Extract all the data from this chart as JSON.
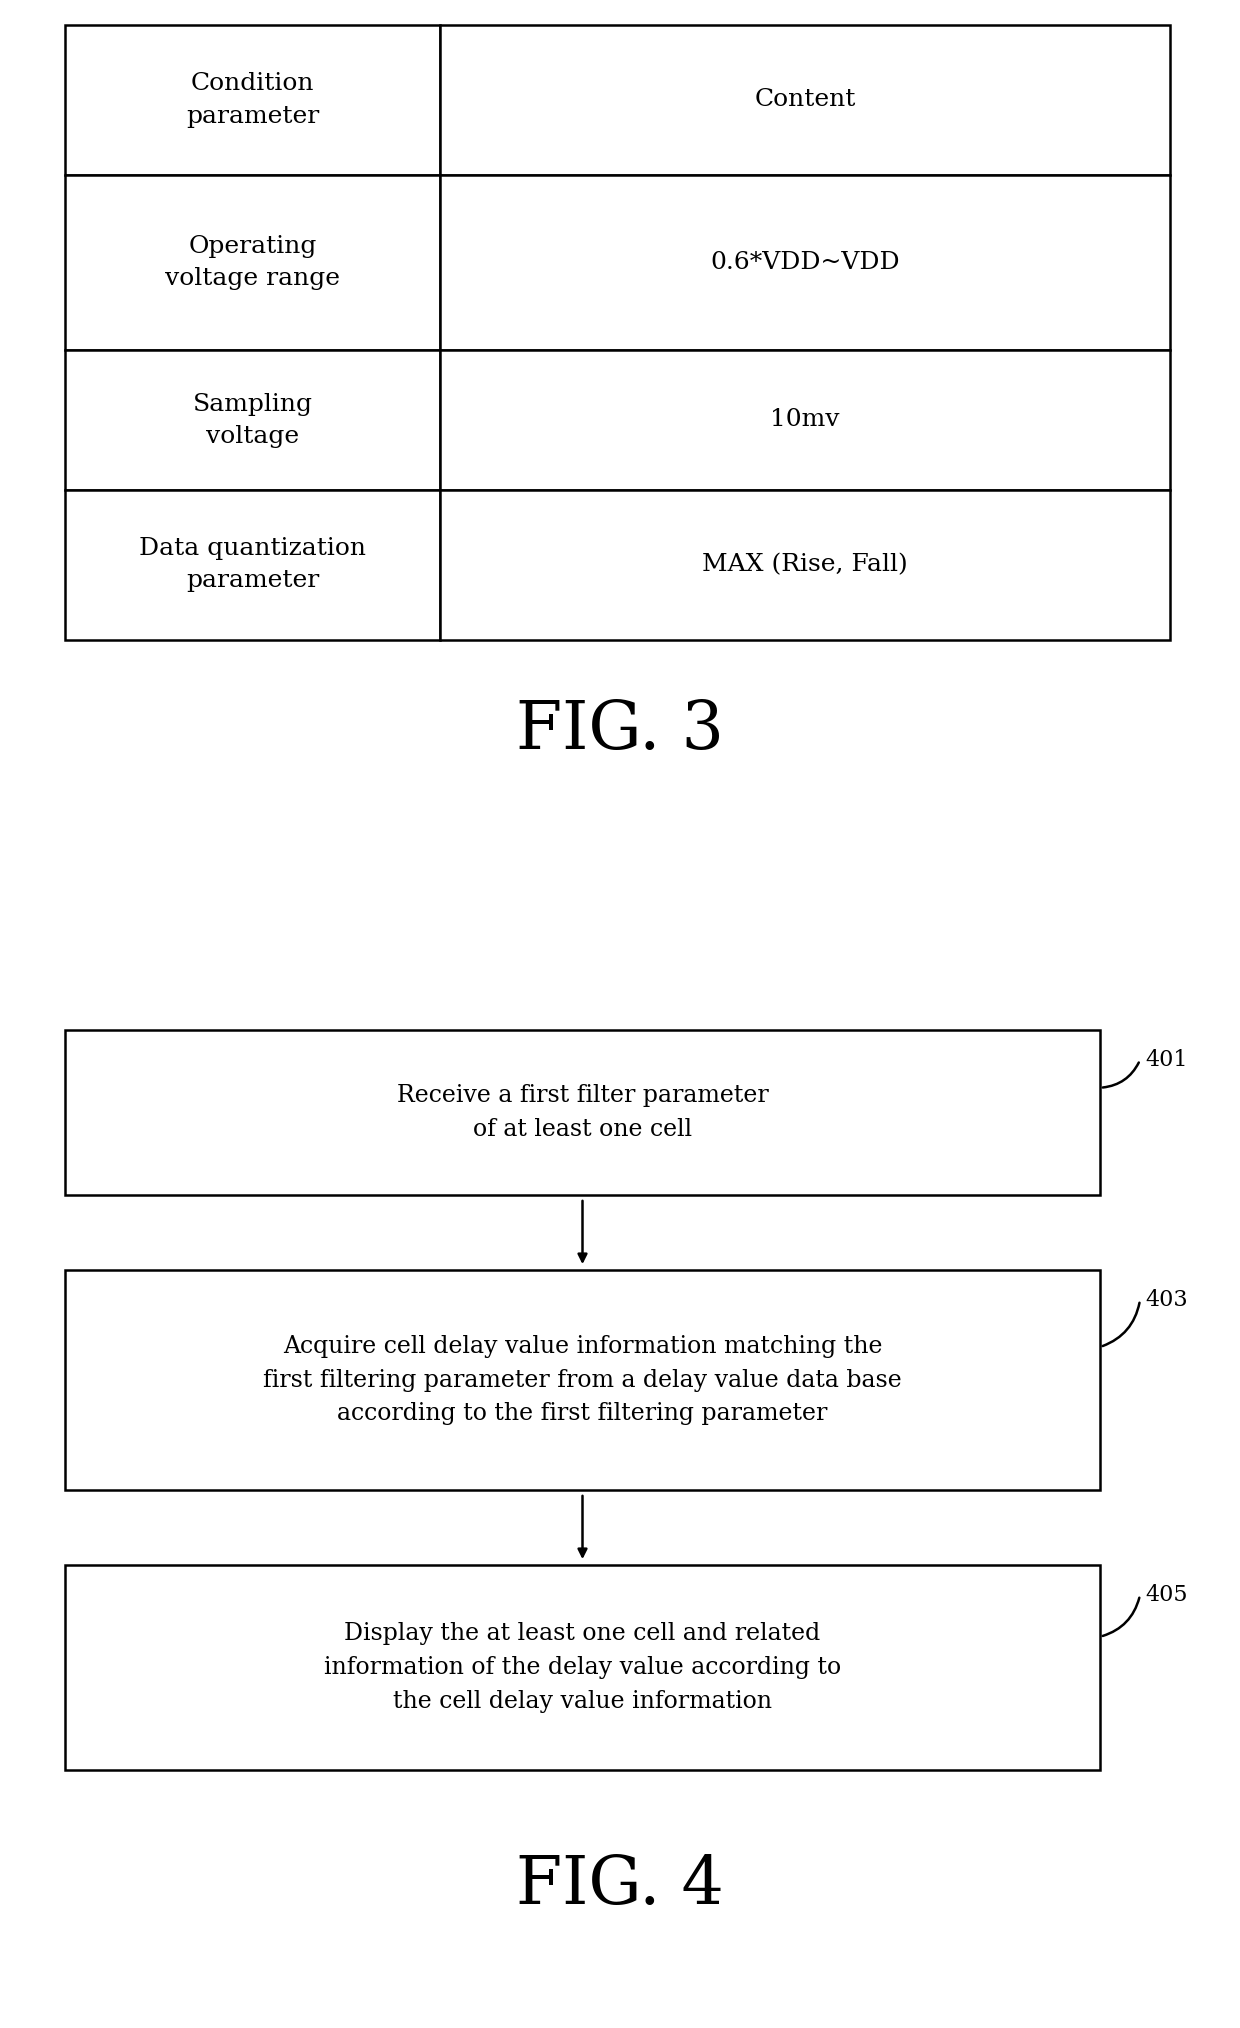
{
  "fig3_title": "FIG. 3",
  "fig4_title": "FIG. 4",
  "table_headers": [
    "Condition\nparameter",
    "Content"
  ],
  "table_rows": [
    [
      "Operating\nvoltage range",
      "0.6*VDD~VDD"
    ],
    [
      "Sampling\nvoltage",
      "10mv"
    ],
    [
      "Data quantization\nparameter",
      "MAX (Rise, Fall)"
    ]
  ],
  "flowchart_boxes": [
    {
      "label": "Receive a first filter parameter\nof at least one cell",
      "ref": "401"
    },
    {
      "label": "Acquire cell delay value information matching the\nfirst filtering parameter from a delay value data base\naccording to the first filtering parameter",
      "ref": "403"
    },
    {
      "label": "Display the at least one cell and related\ninformation of the delay value according to\nthe cell delay value information",
      "ref": "405"
    }
  ],
  "bg_color": "#ffffff",
  "line_color": "#000000",
  "text_color": "#000000",
  "font_size_table": 18,
  "font_size_flow": 17,
  "font_size_fig_label": 48,
  "font_size_ref": 16
}
